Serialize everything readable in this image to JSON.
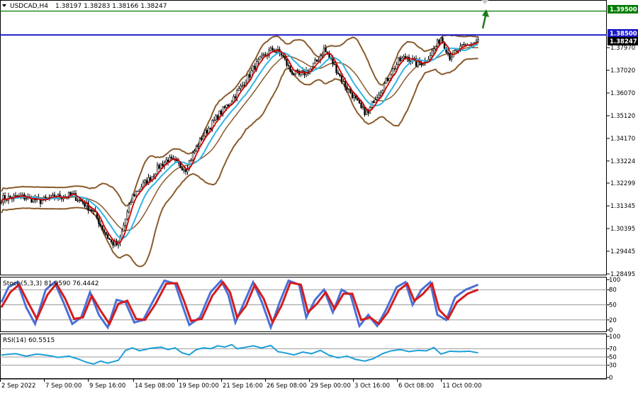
{
  "header": {
    "menu_icon": "triangle-down-icon",
    "symbol": "USDCAD,H4",
    "ohlc": "1.38197 1.38283 1.38166 1.38247"
  },
  "colors": {
    "background": "#ffffff",
    "frame": "#000000",
    "grid": "#b4b4b4",
    "candle": "#000000",
    "bollinger": "#8a5a2b",
    "ma_fast": "#cc0000",
    "ma_slow": "#33b5e5",
    "level_upper": "#007a00",
    "level_current": "#1a1ac8",
    "arrow": "#1c7a1c",
    "stoch_main": "#4a6fd8",
    "stoch_signal": "#d41c1c",
    "rsi": "#1c9fd8",
    "label_bg": "#000000"
  },
  "price_labels": {
    "level_upper": "1.39500",
    "level_current": "1.38500",
    "last_price": "1.38247"
  },
  "stoch_header": "Stoch(5,3,3) 81.9590 76.4442",
  "rsi_header": "RSI(14) 60.5515",
  "chart_data": [
    {
      "type": "candlestick",
      "title": "USDCAD,H4",
      "y_ticks": [
        "1.39500",
        "1.38500",
        "1.38247",
        "1.37970",
        "1.37020",
        "1.36070",
        "1.35120",
        "1.34170",
        "1.33224",
        "1.32299",
        "1.31345",
        "1.30395",
        "1.29445",
        "1.28495"
      ],
      "ylim": [
        1.2845,
        1.3995
      ],
      "grid": false,
      "x_labels": [
        "2 Sep 2022",
        "7 Sep 00:00",
        "9 Sep 16:00",
        "14 Sep 08:00",
        "19 Sep 00:00",
        "21 Sep 16:00",
        "26 Sep 08:00",
        "29 Sep 00:00",
        "3 Oct 16:00",
        "6 Oct 08:00",
        "11 Oct 00:00"
      ],
      "price_path": [
        [
          0,
          1.3165
        ],
        [
          12,
          1.3172
        ],
        [
          22,
          1.3155
        ],
        [
          30,
          1.317
        ],
        [
          40,
          1.318
        ],
        [
          46,
          1.3148
        ],
        [
          52,
          1.311
        ],
        [
          57,
          1.304
        ],
        [
          62,
          1.298
        ],
        [
          66,
          1.297
        ],
        [
          70,
          1.308
        ],
        [
          74,
          1.3175
        ],
        [
          78,
          1.321
        ],
        [
          84,
          1.325
        ],
        [
          89,
          1.33
        ],
        [
          94,
          1.333
        ],
        [
          99,
          1.331
        ],
        [
          104,
          1.329
        ],
        [
          108,
          1.335
        ],
        [
          113,
          1.342
        ],
        [
          118,
          1.347
        ],
        [
          123,
          1.352
        ],
        [
          128,
          1.356
        ],
        [
          133,
          1.361
        ],
        [
          138,
          1.366
        ],
        [
          143,
          1.372
        ],
        [
          148,
          1.376
        ],
        [
          153,
          1.379
        ],
        [
          158,
          1.377
        ],
        [
          163,
          1.37
        ],
        [
          168,
          1.368
        ],
        [
          173,
          1.37
        ],
        [
          178,
          1.374
        ],
        [
          182,
          1.379
        ],
        [
          188,
          1.372
        ],
        [
          193,
          1.365
        ],
        [
          198,
          1.36
        ],
        [
          203,
          1.354
        ],
        [
          207,
          1.352
        ],
        [
          210,
          1.358
        ],
        [
          214,
          1.362
        ],
        [
          219,
          1.368
        ],
        [
          224,
          1.374
        ],
        [
          229,
          1.376
        ],
        [
          234,
          1.373
        ],
        [
          239,
          1.374
        ],
        [
          244,
          1.379
        ],
        [
          248,
          1.384
        ],
        [
          253,
          1.376
        ],
        [
          258,
          1.379
        ],
        [
          264,
          1.381
        ],
        [
          269,
          1.3825
        ]
      ],
      "indicators": {
        "bollinger_bands": "upper / middle / lower envelope",
        "moving_averages": [
          "fast MA (red)",
          "slow MA (cyan)"
        ]
      },
      "annotations": [
        {
          "type": "horizontal_line",
          "price": 1.395,
          "label": "1.39500"
        },
        {
          "type": "horizontal_line",
          "price": 1.385,
          "label": "1.38500"
        },
        {
          "type": "arrow",
          "direction": "up"
        }
      ],
      "last_price": 1.38247
    },
    {
      "type": "line",
      "title": "Stoch(5,3,3) 81.9590 76.4442",
      "series_values": [
        "81.9590",
        "76.4442"
      ],
      "y_ticks": [
        "100",
        "80",
        "50",
        "20",
        "0"
      ],
      "ylim": [
        0,
        100
      ],
      "levels": [
        80,
        50,
        20
      ],
      "main_path": [
        [
          0,
          55
        ],
        [
          4,
          85
        ],
        [
          9,
          95
        ],
        [
          14,
          45
        ],
        [
          19,
          12
        ],
        [
          25,
          80
        ],
        [
          30,
          95
        ],
        [
          35,
          55
        ],
        [
          40,
          12
        ],
        [
          45,
          25
        ],
        [
          50,
          75
        ],
        [
          55,
          30
        ],
        [
          60,
          5
        ],
        [
          65,
          60
        ],
        [
          70,
          55
        ],
        [
          75,
          15
        ],
        [
          80,
          20
        ],
        [
          86,
          60
        ],
        [
          92,
          98
        ],
        [
          98,
          92
        ],
        [
          102,
          50
        ],
        [
          106,
          10
        ],
        [
          112,
          25
        ],
        [
          118,
          75
        ],
        [
          124,
          98
        ],
        [
          128,
          70
        ],
        [
          132,
          15
        ],
        [
          137,
          55
        ],
        [
          142,
          95
        ],
        [
          147,
          55
        ],
        [
          152,
          5
        ],
        [
          157,
          55
        ],
        [
          162,
          98
        ],
        [
          168,
          90
        ],
        [
          172,
          25
        ],
        [
          177,
          60
        ],
        [
          182,
          80
        ],
        [
          187,
          35
        ],
        [
          192,
          80
        ],
        [
          197,
          70
        ],
        [
          202,
          8
        ],
        [
          207,
          30
        ],
        [
          212,
          8
        ],
        [
          217,
          40
        ],
        [
          223,
          85
        ],
        [
          228,
          95
        ],
        [
          232,
          50
        ],
        [
          237,
          80
        ],
        [
          242,
          95
        ],
        [
          246,
          30
        ],
        [
          251,
          20
        ],
        [
          256,
          65
        ],
        [
          262,
          80
        ],
        [
          269,
          90
        ]
      ],
      "signal_path": [
        [
          0,
          45
        ],
        [
          5,
          75
        ],
        [
          10,
          90
        ],
        [
          15,
          55
        ],
        [
          20,
          22
        ],
        [
          26,
          70
        ],
        [
          31,
          92
        ],
        [
          36,
          62
        ],
        [
          41,
          22
        ],
        [
          46,
          25
        ],
        [
          51,
          68
        ],
        [
          56,
          38
        ],
        [
          61,
          12
        ],
        [
          66,
          52
        ],
        [
          71,
          58
        ],
        [
          76,
          22
        ],
        [
          81,
          20
        ],
        [
          87,
          52
        ],
        [
          93,
          92
        ],
        [
          99,
          93
        ],
        [
          103,
          58
        ],
        [
          107,
          18
        ],
        [
          113,
          22
        ],
        [
          119,
          68
        ],
        [
          125,
          95
        ],
        [
          129,
          75
        ],
        [
          133,
          25
        ],
        [
          138,
          48
        ],
        [
          143,
          90
        ],
        [
          148,
          62
        ],
        [
          153,
          15
        ],
        [
          158,
          48
        ],
        [
          163,
          94
        ],
        [
          169,
          90
        ],
        [
          173,
          35
        ],
        [
          178,
          52
        ],
        [
          183,
          75
        ],
        [
          188,
          42
        ],
        [
          193,
          72
        ],
        [
          198,
          72
        ],
        [
          203,
          20
        ],
        [
          208,
          25
        ],
        [
          213,
          12
        ],
        [
          218,
          35
        ],
        [
          224,
          78
        ],
        [
          229,
          92
        ],
        [
          233,
          58
        ],
        [
          238,
          72
        ],
        [
          243,
          92
        ],
        [
          247,
          40
        ],
        [
          252,
          22
        ],
        [
          257,
          55
        ],
        [
          263,
          72
        ],
        [
          269,
          80
        ]
      ]
    },
    {
      "type": "line",
      "title": "RSI(14) 60.5515",
      "series_values": [
        "60.5515"
      ],
      "y_ticks": [
        "100",
        "70",
        "50",
        "30",
        "0"
      ],
      "ylim": [
        0,
        100
      ],
      "levels": [
        70,
        50,
        30
      ],
      "path": [
        [
          0,
          55
        ],
        [
          8,
          58
        ],
        [
          14,
          52
        ],
        [
          20,
          57
        ],
        [
          26,
          54
        ],
        [
          32,
          49
        ],
        [
          38,
          52
        ],
        [
          44,
          44
        ],
        [
          48,
          37
        ],
        [
          52,
          33
        ],
        [
          56,
          40
        ],
        [
          60,
          35
        ],
        [
          66,
          42
        ],
        [
          70,
          66
        ],
        [
          74,
          72
        ],
        [
          78,
          65
        ],
        [
          84,
          71
        ],
        [
          90,
          74
        ],
        [
          94,
          68
        ],
        [
          98,
          72
        ],
        [
          102,
          60
        ],
        [
          106,
          55
        ],
        [
          110,
          68
        ],
        [
          114,
          72
        ],
        [
          118,
          70
        ],
        [
          122,
          77
        ],
        [
          126,
          74
        ],
        [
          130,
          80
        ],
        [
          133,
          70
        ],
        [
          137,
          73
        ],
        [
          142,
          77
        ],
        [
          147,
          72
        ],
        [
          152,
          78
        ],
        [
          156,
          63
        ],
        [
          160,
          60
        ],
        [
          165,
          55
        ],
        [
          170,
          62
        ],
        [
          175,
          58
        ],
        [
          180,
          66
        ],
        [
          185,
          54
        ],
        [
          190,
          48
        ],
        [
          195,
          52
        ],
        [
          200,
          44
        ],
        [
          205,
          40
        ],
        [
          210,
          46
        ],
        [
          215,
          58
        ],
        [
          220,
          65
        ],
        [
          225,
          68
        ],
        [
          230,
          63
        ],
        [
          235,
          66
        ],
        [
          240,
          65
        ],
        [
          244,
          73
        ],
        [
          248,
          57
        ],
        [
          253,
          64
        ],
        [
          258,
          63
        ],
        [
          264,
          64
        ],
        [
          269,
          60
        ]
      ]
    }
  ]
}
